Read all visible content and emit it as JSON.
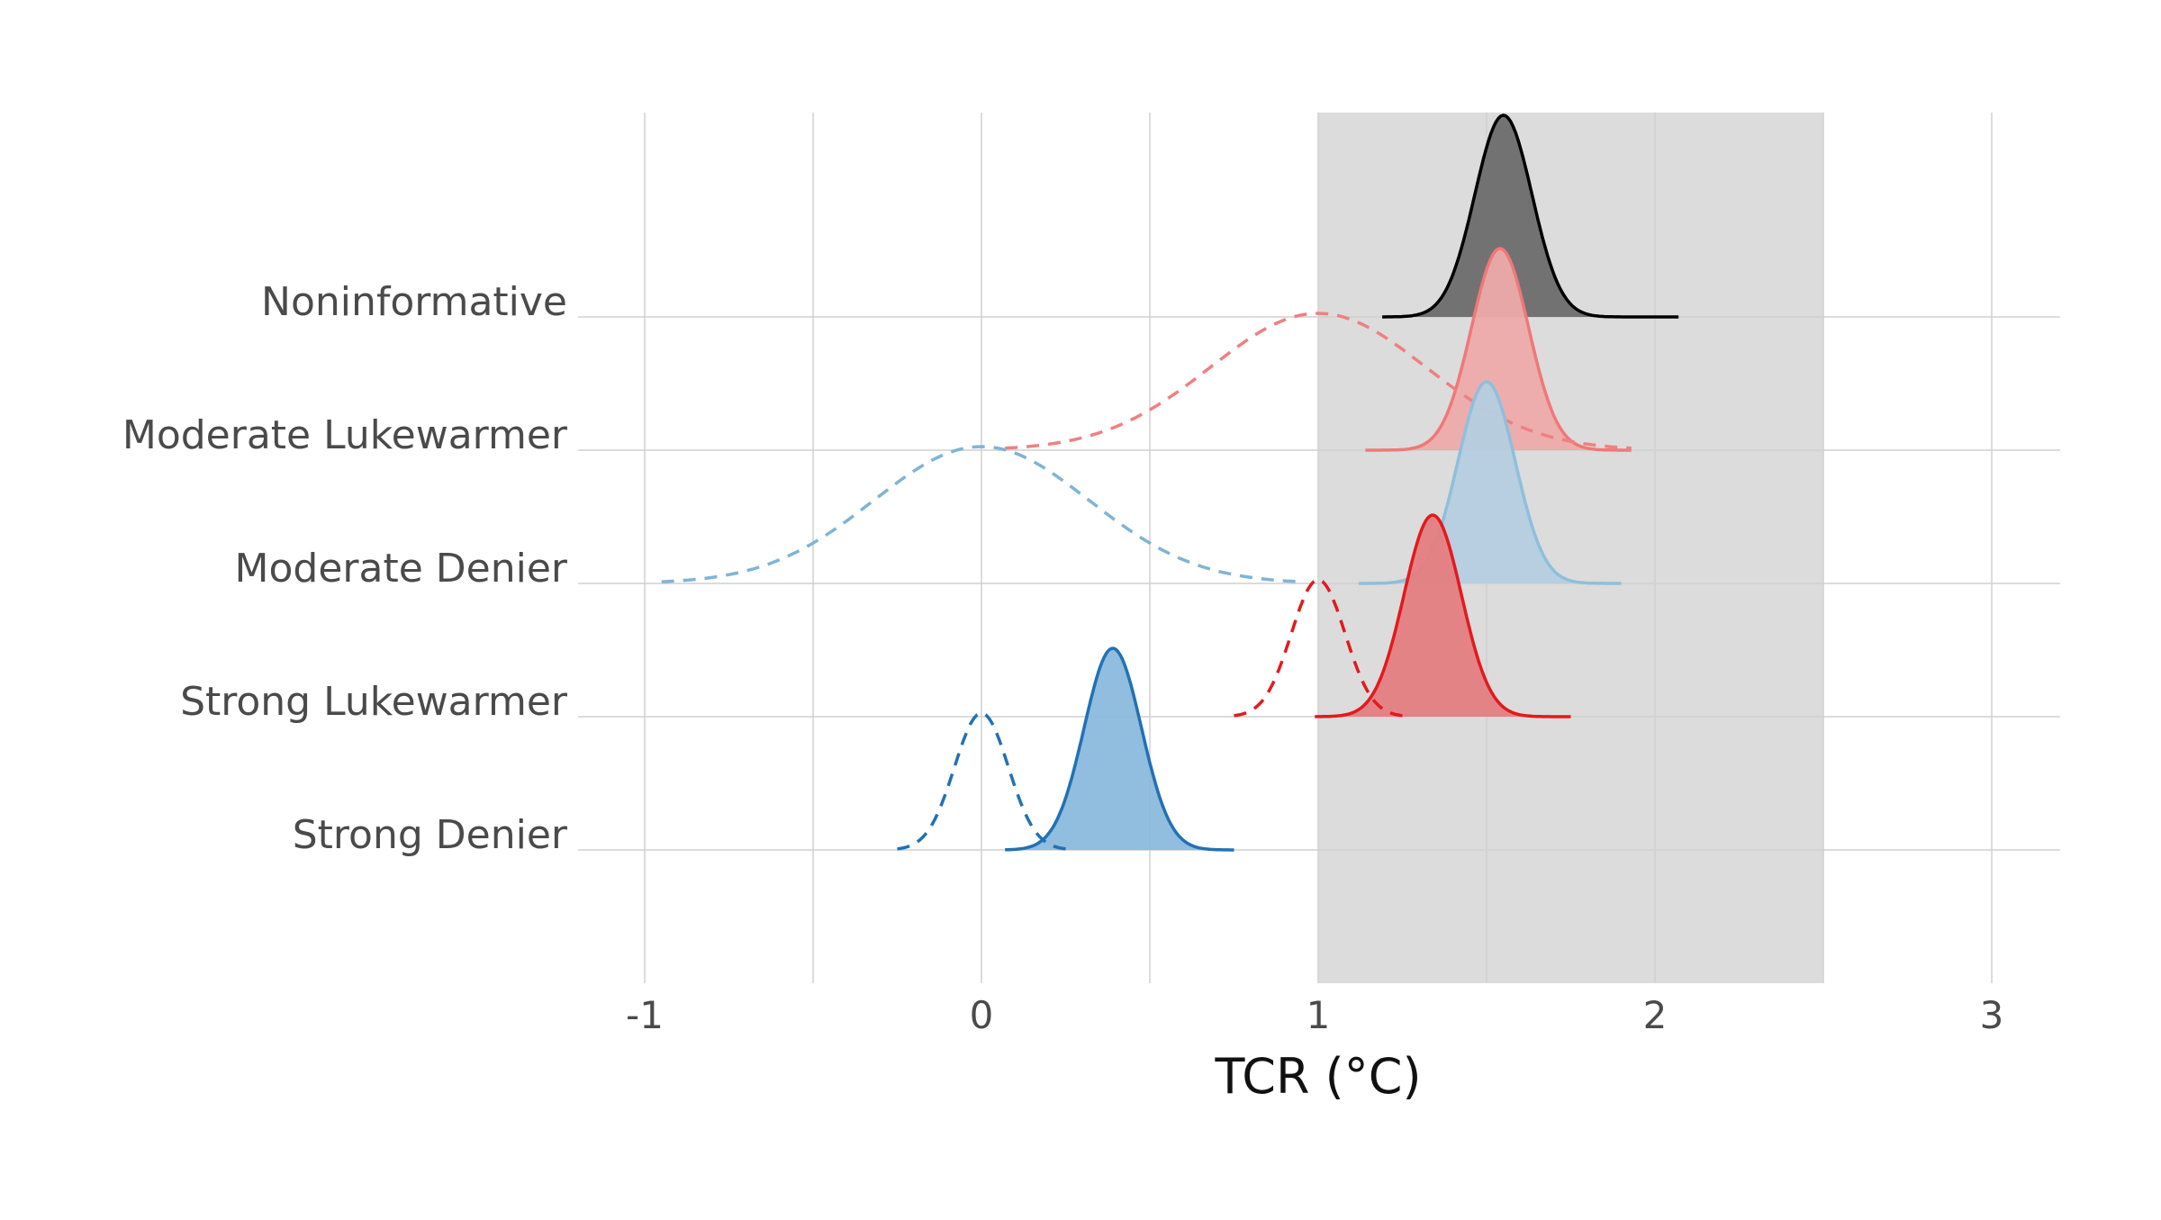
{
  "chart_data": {
    "type": "ridgeline-density",
    "title": "",
    "xlabel": "TCR (°C)",
    "ylabel": "",
    "xlim": [
      -1.2,
      3.2
    ],
    "x_ticks": [
      -1,
      0,
      1,
      2,
      3
    ],
    "x_tick_labels": [
      "-1",
      "0",
      "1",
      "2",
      "3"
    ],
    "shaded_region": {
      "x_min": 1.0,
      "x_max": 2.5,
      "color": "#dcdcdc"
    },
    "grid": true,
    "legend": "none",
    "rows": [
      "Strong Denier",
      "Strong Lukewarmer",
      "Moderate Denier",
      "Moderate Lukewarmer",
      "Noninformative"
    ],
    "priors": [
      {
        "row": "Strong Denier",
        "color": "#2171b5",
        "linestyle": "dashed",
        "mean": 0.0,
        "sd": 0.08,
        "x_range": [
          -0.25,
          0.25
        ]
      },
      {
        "row": "Strong Lukewarmer",
        "color": "#e31a1c",
        "linestyle": "dashed",
        "mean": 1.0,
        "sd": 0.08,
        "x_range": [
          0.75,
          1.25
        ]
      },
      {
        "row": "Moderate Denier",
        "color": "#7fb4d6",
        "linestyle": "dashed",
        "mean": 0.0,
        "sd": 0.32,
        "x_range": [
          -0.95,
          0.95
        ]
      },
      {
        "row": "Moderate Lukewarmer",
        "color": "#f08080",
        "linestyle": "dashed",
        "mean": 1.0,
        "sd": 0.32,
        "x_range": [
          0.07,
          1.93
        ]
      }
    ],
    "posteriors": [
      {
        "row": "Strong Denier",
        "color": "#2171b5",
        "fill": "#8bb9dc",
        "mean": 0.39,
        "sd": 0.085,
        "x_range": [
          0.07,
          0.75
        ]
      },
      {
        "row": "Strong Lukewarmer",
        "color": "#e31a1c",
        "fill": "#e47d7f",
        "mean": 1.34,
        "sd": 0.085,
        "x_range": [
          0.99,
          1.75
        ]
      },
      {
        "row": "Moderate Denier",
        "color": "#8fbfdc",
        "fill": "#b4cedf",
        "mean": 1.5,
        "sd": 0.085,
        "x_range": [
          1.12,
          1.9
        ]
      },
      {
        "row": "Moderate Lukewarmer",
        "color": "#f07878",
        "fill": "#edaaaa",
        "mean": 1.54,
        "sd": 0.085,
        "x_range": [
          1.14,
          1.93
        ]
      },
      {
        "row": "Noninformative",
        "color": "#000000",
        "fill": "#6b6b6b",
        "mean": 1.55,
        "sd": 0.085,
        "x_range": [
          1.19,
          2.07
        ]
      }
    ]
  }
}
